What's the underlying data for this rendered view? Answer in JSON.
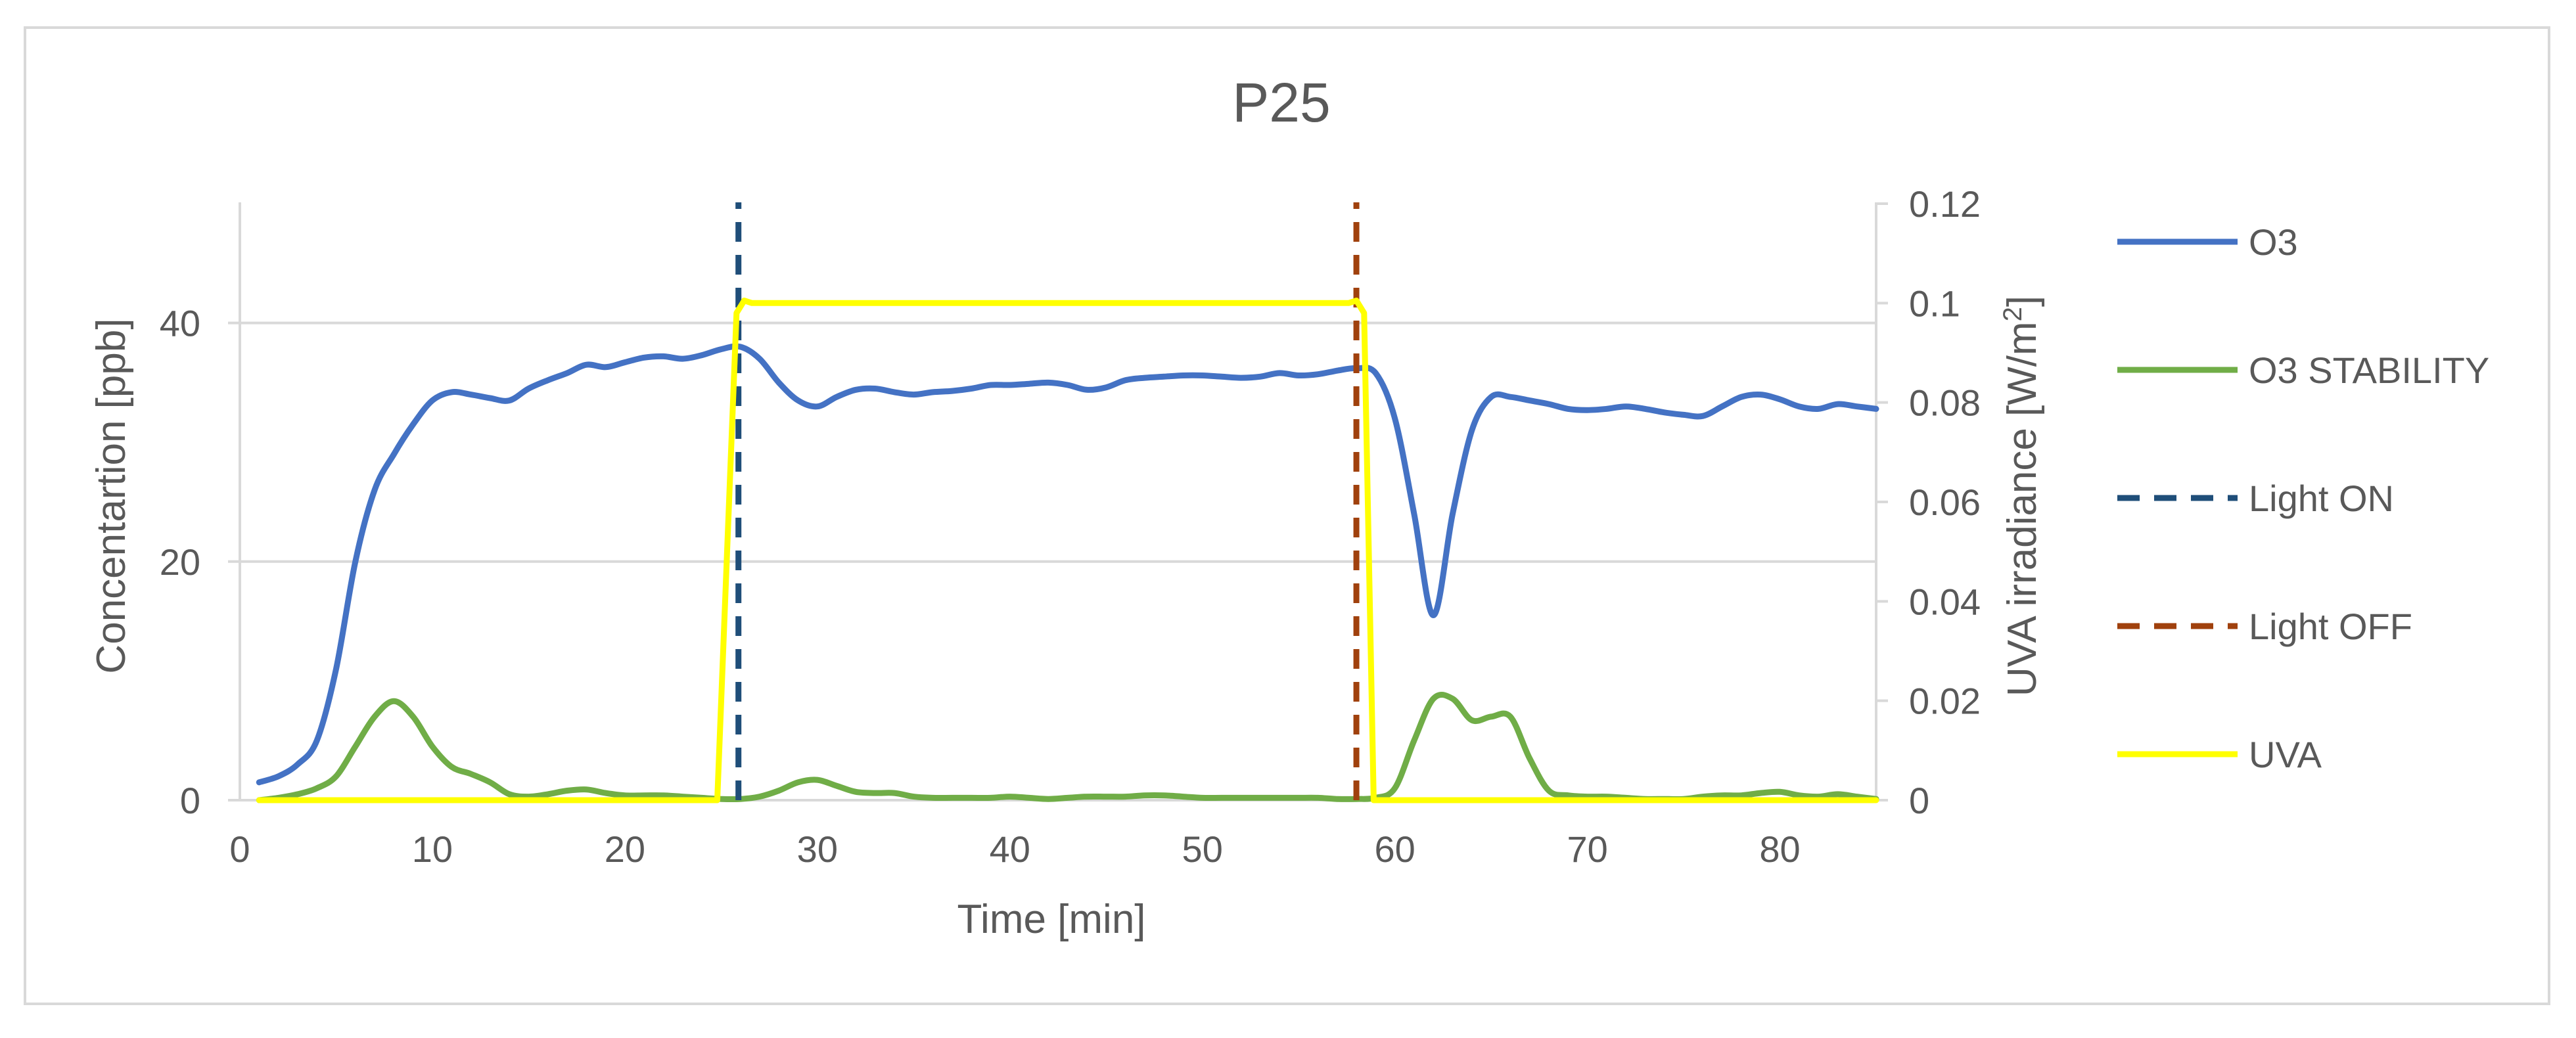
{
  "chart_data": {
    "type": "line",
    "title": "P25",
    "xlabel": "Time [min]",
    "ylabel_left": "Concentartion [ppb]",
    "ylabel_right": "UVA irradiance [W/m",
    "ylabel_right_sup": "2",
    "ylabel_right_close": "]",
    "xlim": [
      0,
      85
    ],
    "ylim_left": [
      0,
      50
    ],
    "ylim_right": [
      0,
      0.12
    ],
    "x_ticks": [
      "0",
      "10",
      "20",
      "30",
      "40",
      "50",
      "60",
      "70",
      "80"
    ],
    "y_left_ticks": [
      "0",
      "20",
      "40"
    ],
    "y_right_ticks": [
      "0",
      "0.02",
      "0.04",
      "0.06",
      "0.08",
      "0.1",
      "0.12"
    ],
    "grid": true,
    "legend_position": "right",
    "colors": {
      "o3": "#4472C4",
      "o3_stability": "#70AD47",
      "light_on": "#1F4E79",
      "light_off": "#A0410D",
      "uva": "#FFFF00"
    },
    "series": [
      {
        "name": "O3",
        "axis": "left",
        "x": [
          1,
          2,
          3,
          4,
          5,
          6,
          7,
          8,
          9,
          10,
          11,
          12,
          13,
          14,
          15,
          16,
          17,
          18,
          19,
          20,
          21,
          22,
          23,
          24,
          25,
          26,
          27,
          28,
          29,
          30,
          31,
          32,
          33,
          34,
          35,
          36,
          37,
          38,
          39,
          40,
          41,
          42,
          43,
          44,
          45,
          46,
          47,
          48,
          49,
          50,
          51,
          52,
          53,
          54,
          55,
          56,
          57,
          58,
          59,
          60,
          61,
          62,
          63,
          64,
          65,
          66,
          67,
          68,
          69,
          70,
          71,
          72,
          73,
          74,
          75,
          76,
          77,
          78,
          79,
          80,
          81,
          82,
          83,
          84,
          85
        ],
        "values": [
          1.5,
          2.0,
          3.0,
          5.0,
          11.0,
          20.0,
          26.0,
          29.0,
          31.5,
          33.5,
          34.2,
          34.0,
          33.7,
          33.5,
          34.5,
          35.2,
          35.8,
          36.5,
          36.3,
          36.7,
          37.1,
          37.2,
          37.0,
          37.3,
          37.8,
          38.0,
          37.0,
          35.0,
          33.5,
          33.0,
          33.8,
          34.4,
          34.5,
          34.2,
          34.0,
          34.2,
          34.3,
          34.5,
          34.8,
          34.8,
          34.9,
          35.0,
          34.8,
          34.4,
          34.6,
          35.2,
          35.4,
          35.5,
          35.6,
          35.6,
          35.5,
          35.4,
          35.5,
          35.8,
          35.6,
          35.7,
          36.0,
          36.2,
          35.8,
          32.0,
          24.0,
          15.5,
          24.0,
          31.0,
          33.8,
          33.8,
          33.5,
          33.2,
          32.8,
          32.7,
          32.8,
          33.0,
          32.8,
          32.5,
          32.3,
          32.2,
          33.0,
          33.8,
          34.0,
          33.6,
          33.0,
          32.8,
          33.2,
          33.0,
          32.8
        ]
      },
      {
        "name": "O3 STABILITY",
        "axis": "left",
        "x": [
          1,
          2,
          3,
          4,
          5,
          6,
          7,
          8,
          9,
          10,
          11,
          12,
          13,
          14,
          15,
          16,
          17,
          18,
          19,
          20,
          21,
          22,
          23,
          24,
          25,
          26,
          27,
          28,
          29,
          30,
          31,
          32,
          33,
          34,
          35,
          36,
          37,
          38,
          39,
          40,
          41,
          42,
          43,
          44,
          45,
          46,
          47,
          48,
          49,
          50,
          51,
          52,
          53,
          54,
          55,
          56,
          57,
          58,
          59,
          60,
          61,
          62,
          63,
          64,
          65,
          66,
          67,
          68,
          69,
          70,
          71,
          72,
          73,
          74,
          75,
          76,
          77,
          78,
          79,
          80,
          81,
          82,
          83,
          84,
          85
        ],
        "values": [
          0.0,
          0.2,
          0.5,
          1.0,
          2.0,
          4.5,
          7.0,
          8.3,
          7.0,
          4.5,
          2.8,
          2.2,
          1.5,
          0.5,
          0.3,
          0.5,
          0.8,
          0.9,
          0.6,
          0.4,
          0.4,
          0.4,
          0.3,
          0.2,
          0.1,
          0.1,
          0.3,
          0.8,
          1.5,
          1.7,
          1.2,
          0.7,
          0.6,
          0.6,
          0.3,
          0.2,
          0.2,
          0.2,
          0.2,
          0.3,
          0.2,
          0.1,
          0.2,
          0.3,
          0.3,
          0.3,
          0.4,
          0.4,
          0.3,
          0.2,
          0.2,
          0.2,
          0.2,
          0.2,
          0.2,
          0.2,
          0.1,
          0.1,
          0.2,
          1.0,
          5.0,
          8.5,
          8.5,
          6.7,
          7.0,
          7.0,
          3.5,
          0.8,
          0.4,
          0.3,
          0.3,
          0.2,
          0.1,
          0.1,
          0.1,
          0.3,
          0.4,
          0.4,
          0.6,
          0.7,
          0.4,
          0.3,
          0.5,
          0.3,
          0.1
        ]
      },
      {
        "name": "Light ON",
        "axis": "left",
        "style": "dashed",
        "x": [
          25.9,
          25.9
        ],
        "values": [
          0,
          50
        ]
      },
      {
        "name": "Light OFF",
        "axis": "left",
        "style": "dashed",
        "x": [
          58.0,
          58.0
        ],
        "values": [
          0,
          50
        ]
      },
      {
        "name": "UVA",
        "axis": "right",
        "x": [
          1,
          24.8,
          25.8,
          26.2,
          26.6,
          57.6,
          58.0,
          58.4,
          58.9,
          85
        ],
        "values": [
          0,
          0,
          0.098,
          0.1005,
          0.1,
          0.1,
          0.1005,
          0.098,
          0,
          0
        ]
      }
    ]
  }
}
